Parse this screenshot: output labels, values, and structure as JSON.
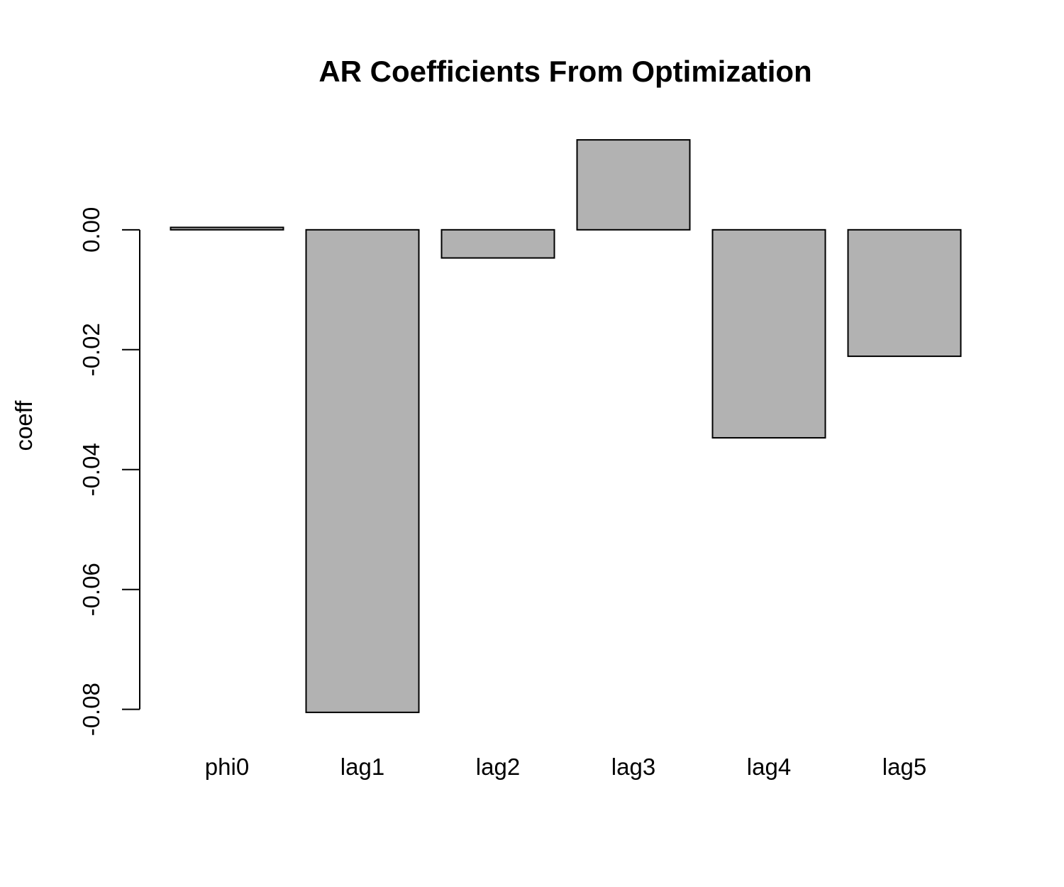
{
  "chart_data": {
    "type": "bar",
    "title": "AR Coefficients From Optimization",
    "y_label": "coeff",
    "categories": [
      "phi0",
      "lag1",
      "lag2",
      "lag3",
      "lag4",
      "lag5"
    ],
    "values": [
      0.0004,
      -0.0805,
      -0.0047,
      0.015,
      -0.0347,
      -0.0211
    ],
    "color": "#b2b2b2",
    "ylim": [
      -0.0843,
      0.0188
    ],
    "yticks": [
      {
        "value": 0,
        "label": "0.00"
      },
      -0.02,
      -0.04,
      -0.06,
      -0.08
    ],
    "grid": false
  }
}
